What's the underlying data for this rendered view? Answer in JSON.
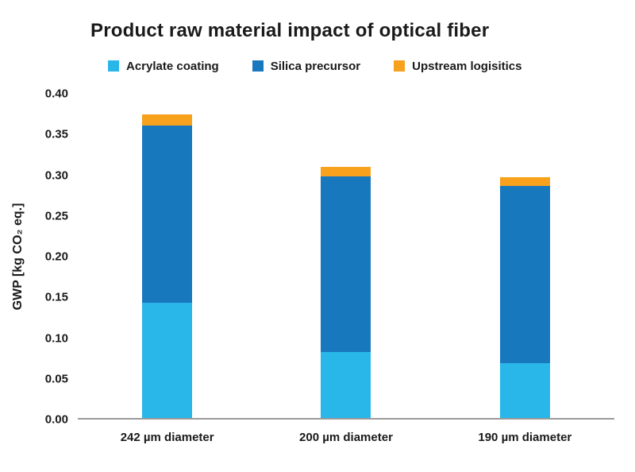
{
  "chart_data": {
    "type": "bar",
    "stacked": true,
    "title": "Product raw material impact of optical fiber",
    "categories": [
      "242 µm diameter",
      "200 µm diameter",
      "190 µm diameter"
    ],
    "series": [
      {
        "name": "Acrylate coating",
        "color": "#29B6E8",
        "values": [
          0.142,
          0.081,
          0.068
        ]
      },
      {
        "name": "Silica precursor",
        "color": "#1878BE",
        "values": [
          0.219,
          0.217,
          0.218
        ]
      },
      {
        "name": "Upstream logisitics",
        "color": "#F7A11C",
        "values": [
          0.014,
          0.012,
          0.011
        ]
      }
    ],
    "xlabel": "",
    "ylabel": "GWP [kg CO₂ eq.]",
    "ylim": [
      0,
      0.4
    ],
    "ytick_step": 0.05,
    "yticks": [
      "0.00",
      "0.05",
      "0.10",
      "0.15",
      "0.20",
      "0.25",
      "0.30",
      "0.35",
      "0.40"
    ],
    "grid": false,
    "legend_position": "top",
    "axis_line_color": "#9b9b9b",
    "text_color": "#1a1a1a",
    "background_color": "#ffffff"
  }
}
